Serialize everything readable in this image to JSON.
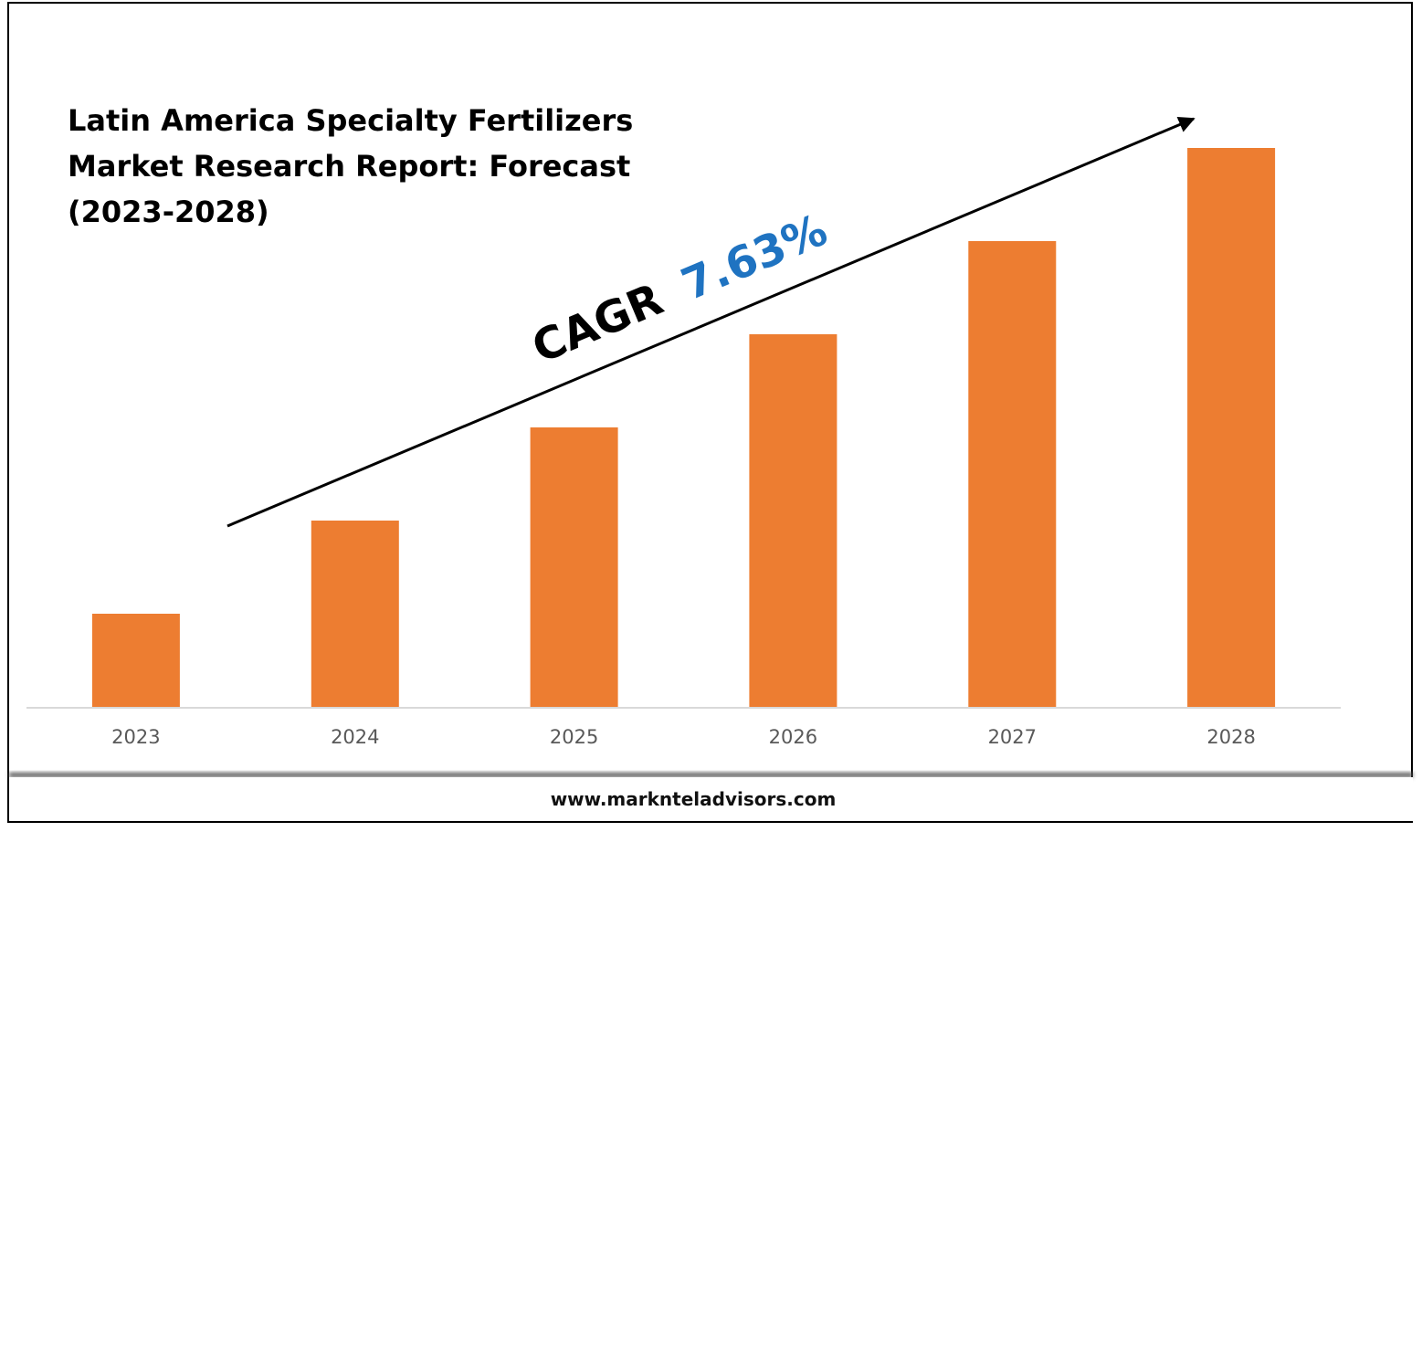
{
  "chart_data": {
    "type": "bar",
    "title_lines": [
      "Latin America Specialty Fertilizers",
      "Market Research Report: Forecast",
      "(2023-2028)"
    ],
    "categories": [
      "2023",
      "2024",
      "2025",
      "2026",
      "2027",
      "2028"
    ],
    "values": [
      1,
      2,
      3,
      4,
      5,
      6
    ],
    "ylim": [
      0,
      6
    ],
    "grid": false,
    "annotation": {
      "prefix": "CAGR",
      "value": "7.63%"
    },
    "colors": {
      "bar": "#ED7D31",
      "cagr_value": "#1F73C1",
      "axis": "#d9d9d9"
    }
  },
  "footer": {
    "website": "www.marknteladvisors.com"
  }
}
